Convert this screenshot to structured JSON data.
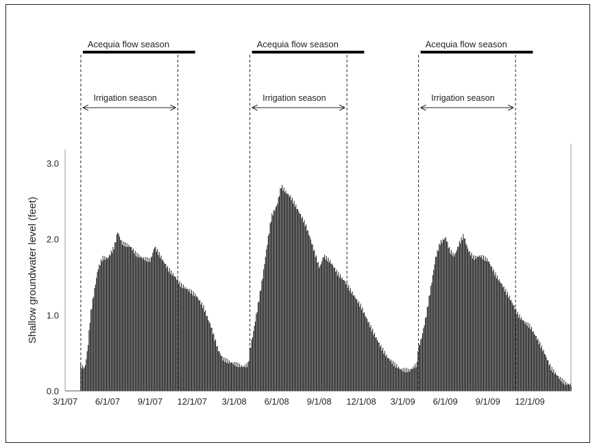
{
  "chart_data": {
    "type": "bar",
    "title": "",
    "ylabel": "Shallow groundwater  level (feet)",
    "xlabel": "",
    "ylim": [
      0,
      3.0
    ],
    "yticks": [
      "0.0",
      "1.0",
      "2.0",
      "3.0"
    ],
    "xticks": [
      "3/1/07",
      "6/1/07",
      "9/1/07",
      "12/1/07",
      "3/1/08",
      "6/1/08",
      "9/1/08",
      "12/1/08",
      "3/1/09",
      "6/1/09",
      "9/1/09",
      "12/1/09"
    ],
    "x_start": "2007-03-01",
    "x_end": "2010-02-28",
    "bar_color": "#222222",
    "seasons": [
      {
        "acequia_label": "Acequia  flow season",
        "irrigation_label": "Irrigation season",
        "acequia_start": "2007-04-01",
        "acequia_end": "2007-11-30",
        "irrigation_start": "2007-04-01",
        "irrigation_end": "2007-10-31"
      },
      {
        "acequia_label": "Acequia  flow season",
        "irrigation_label": "Irrigation season",
        "acequia_start": "2008-04-01",
        "acequia_end": "2008-11-30",
        "irrigation_start": "2008-04-01",
        "irrigation_end": "2008-10-31"
      },
      {
        "acequia_label": "Acequia  flow season",
        "irrigation_label": "Irrigation season",
        "acequia_start": "2009-04-01",
        "acequia_end": "2009-11-30",
        "irrigation_start": "2009-04-01",
        "irrigation_end": "2009-10-31"
      }
    ],
    "series": [
      {
        "points": [
          [
            "2007-04-01",
            0.42
          ],
          [
            "2007-04-03",
            0.33
          ],
          [
            "2007-04-12",
            0.3
          ],
          [
            "2007-04-18",
            0.55
          ],
          [
            "2007-04-24",
            1.0
          ],
          [
            "2007-05-02",
            1.3
          ],
          [
            "2007-05-10",
            1.6
          ],
          [
            "2007-05-20",
            1.75
          ],
          [
            "2007-06-01",
            1.75
          ],
          [
            "2007-06-15",
            1.9
          ],
          [
            "2007-06-22",
            2.1
          ],
          [
            "2007-07-01",
            1.95
          ],
          [
            "2007-07-20",
            1.9
          ],
          [
            "2007-08-01",
            1.8
          ],
          [
            "2007-08-15",
            1.75
          ],
          [
            "2007-09-01",
            1.72
          ],
          [
            "2007-09-10",
            1.9
          ],
          [
            "2007-09-25",
            1.75
          ],
          [
            "2007-10-10",
            1.6
          ],
          [
            "2007-10-25",
            1.5
          ],
          [
            "2007-11-05",
            1.4
          ],
          [
            "2007-11-25",
            1.32
          ],
          [
            "2007-12-10",
            1.25
          ],
          [
            "2007-12-25",
            1.1
          ],
          [
            "2008-01-10",
            0.85
          ],
          [
            "2008-01-25",
            0.55
          ],
          [
            "2008-02-05",
            0.42
          ],
          [
            "2008-02-20",
            0.38
          ],
          [
            "2008-03-05",
            0.35
          ],
          [
            "2008-03-20",
            0.32
          ],
          [
            "2008-03-31",
            0.35
          ],
          [
            "2008-04-02",
            0.5
          ],
          [
            "2008-04-10",
            0.75
          ],
          [
            "2008-04-20",
            1.1
          ],
          [
            "2008-05-01",
            1.5
          ],
          [
            "2008-05-10",
            1.9
          ],
          [
            "2008-05-20",
            2.3
          ],
          [
            "2008-06-01",
            2.45
          ],
          [
            "2008-06-10",
            2.7
          ],
          [
            "2008-06-20",
            2.62
          ],
          [
            "2008-07-01",
            2.55
          ],
          [
            "2008-07-15",
            2.4
          ],
          [
            "2008-08-01",
            2.2
          ],
          [
            "2008-08-10",
            2.05
          ],
          [
            "2008-08-20",
            1.85
          ],
          [
            "2008-09-01",
            1.62
          ],
          [
            "2008-09-10",
            1.78
          ],
          [
            "2008-09-25",
            1.7
          ],
          [
            "2008-10-10",
            1.55
          ],
          [
            "2008-10-25",
            1.45
          ],
          [
            "2008-11-10",
            1.3
          ],
          [
            "2008-12-01",
            1.1
          ],
          [
            "2008-12-20",
            0.85
          ],
          [
            "2009-01-10",
            0.6
          ],
          [
            "2009-01-25",
            0.45
          ],
          [
            "2009-02-10",
            0.35
          ],
          [
            "2009-02-25",
            0.28
          ],
          [
            "2009-03-15",
            0.27
          ],
          [
            "2009-03-31",
            0.35
          ],
          [
            "2009-04-02",
            0.55
          ],
          [
            "2009-04-10",
            0.7
          ],
          [
            "2009-04-20",
            1.0
          ],
          [
            "2009-05-01",
            1.4
          ],
          [
            "2009-05-10",
            1.75
          ],
          [
            "2009-05-20",
            1.95
          ],
          [
            "2009-06-01",
            2.02
          ],
          [
            "2009-06-10",
            1.85
          ],
          [
            "2009-06-20",
            1.78
          ],
          [
            "2009-07-01",
            1.95
          ],
          [
            "2009-07-10",
            2.05
          ],
          [
            "2009-07-20",
            1.85
          ],
          [
            "2009-08-01",
            1.75
          ],
          [
            "2009-08-15",
            1.78
          ],
          [
            "2009-09-01",
            1.72
          ],
          [
            "2009-09-15",
            1.55
          ],
          [
            "2009-10-01",
            1.4
          ],
          [
            "2009-10-20",
            1.2
          ],
          [
            "2009-11-05",
            1.0
          ],
          [
            "2009-11-20",
            0.9
          ],
          [
            "2009-12-01",
            0.85
          ],
          [
            "2009-12-15",
            0.7
          ],
          [
            "2010-01-01",
            0.5
          ],
          [
            "2010-01-15",
            0.3
          ],
          [
            "2010-02-01",
            0.18
          ],
          [
            "2010-02-15",
            0.1
          ],
          [
            "2010-02-28",
            0.08
          ]
        ]
      }
    ]
  }
}
